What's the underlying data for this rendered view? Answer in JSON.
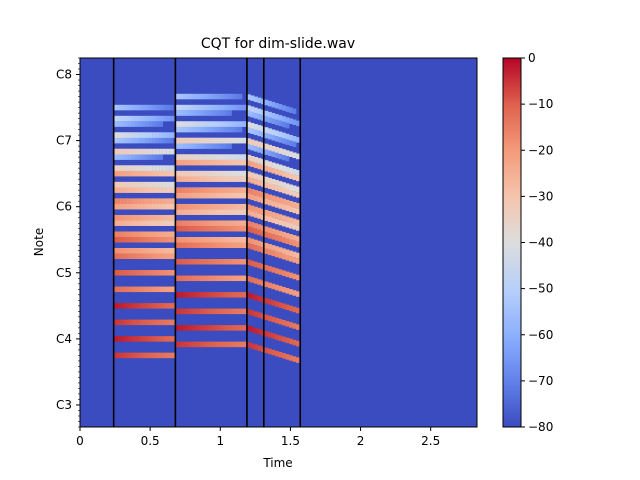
{
  "chart_data": {
    "type": "heatmap",
    "title": "CQT for dim-slide.wav",
    "xlabel": "Time",
    "ylabel": "Note",
    "xlim": [
      0,
      2.83
    ],
    "x_ticks": [
      {
        "value": 0,
        "label": "0"
      },
      {
        "value": 0.5,
        "label": "0.5"
      },
      {
        "value": 1.0,
        "label": "1"
      },
      {
        "value": 1.5,
        "label": "1.5"
      },
      {
        "value": 2.0,
        "label": "2"
      },
      {
        "value": 2.5,
        "label": "2.5"
      }
    ],
    "y_scale": "midi-note",
    "ylim": [
      44,
      111
    ],
    "y_ticks": [
      {
        "value": 48,
        "label": "C3"
      },
      {
        "value": 60,
        "label": "C4"
      },
      {
        "value": 72,
        "label": "C5"
      },
      {
        "value": 84,
        "label": "C6"
      },
      {
        "value": 96,
        "label": "C7"
      },
      {
        "value": 108,
        "label": "C8"
      }
    ],
    "colormap": "coolwarm",
    "colorbar": {
      "range": [
        -80,
        0
      ],
      "ticks": [
        {
          "value": 0,
          "label": "0"
        },
        {
          "value": -10,
          "label": "−10"
        },
        {
          "value": -20,
          "label": "−20"
        },
        {
          "value": -30,
          "label": "−30"
        },
        {
          "value": -40,
          "label": "−40"
        },
        {
          "value": -50,
          "label": "−50"
        },
        {
          "value": -60,
          "label": "−60"
        },
        {
          "value": -70,
          "label": "−70"
        },
        {
          "value": -80,
          "label": "−80"
        }
      ]
    },
    "background_db": -80,
    "segment_markers": [
      0.24,
      0.68,
      1.19,
      1.31,
      1.57
    ],
    "segments": [
      {
        "t0": 0.24,
        "t1": 0.68,
        "f0": [
          57,
          60,
          63,
          66
        ]
      },
      {
        "t0": 0.68,
        "t1": 1.19,
        "f0": [
          59,
          62,
          65,
          68
        ]
      },
      {
        "t0": 1.19,
        "t1": 1.57,
        "f0": [
          59,
          62,
          65,
          68
        ],
        "glide_to": [
          56,
          59,
          62,
          65
        ]
      }
    ],
    "partial_levels_db": [
      -5,
      -12,
      -18,
      -24,
      -34,
      -42,
      -50,
      -56
    ]
  }
}
